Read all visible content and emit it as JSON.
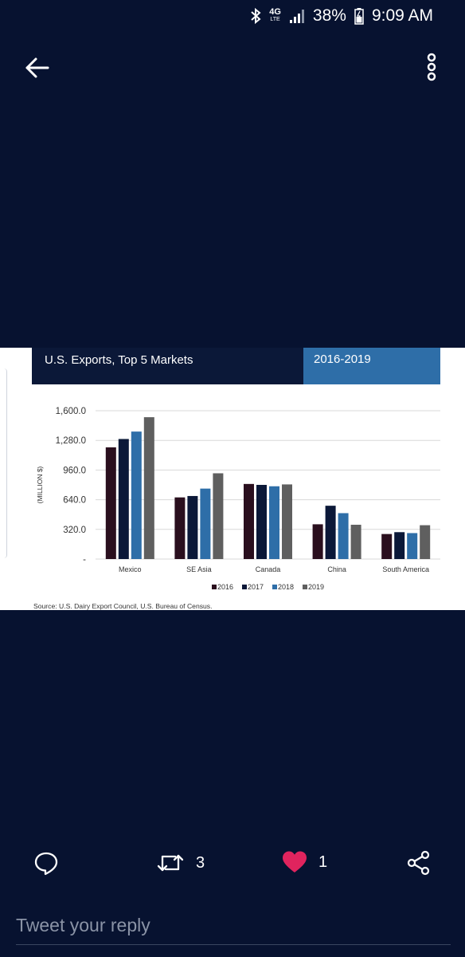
{
  "status_bar": {
    "network": "4G",
    "network_sub": "LTE",
    "battery": "38%",
    "time": "9:09 AM"
  },
  "icons": {
    "back": "arrow-left-icon",
    "more": "more-vertical-icon",
    "reply": "comment-icon",
    "retweet": "retweet-icon",
    "like": "heart-icon",
    "share": "share-icon"
  },
  "colors": {
    "background": "#071230",
    "like_active": "#e0245e",
    "chart_2016": "#2a0f1e",
    "chart_2017": "#0b1838",
    "chart_2018": "#2e6ea8",
    "chart_2019": "#5f5f5f"
  },
  "chart": {
    "header_title": "U.S. Exports, Top 5 Markets",
    "header_years": "2016-2019",
    "source": "Source: U.S. Dairy Export Council, U.S. Bureau of Census."
  },
  "chart_data": {
    "type": "bar",
    "title": "U.S. Exports, Top 5 Markets",
    "subtitle": "2016-2019",
    "xlabel": "",
    "ylabel": "(MILLION $)",
    "categories": [
      "Mexico",
      "SE Asia",
      "Canada",
      "China",
      "South America"
    ],
    "ytick_labels": [
      "-",
      "320.0",
      "640.0",
      "960.0",
      "1,280.0",
      "1,600.0"
    ],
    "ytick_values": [
      0,
      320,
      640,
      960,
      1280,
      1600
    ],
    "ylim": [
      0,
      1600
    ],
    "grid": true,
    "legend_position": "bottom",
    "series": [
      {
        "name": "2016",
        "values": [
          1205,
          665,
          810,
          375,
          270
        ]
      },
      {
        "name": "2017",
        "values": [
          1295,
          680,
          800,
          575,
          290
        ]
      },
      {
        "name": "2018",
        "values": [
          1375,
          760,
          785,
          495,
          280
        ]
      },
      {
        "name": "2019",
        "values": [
          1530,
          925,
          805,
          370,
          365
        ]
      }
    ]
  },
  "actions": {
    "retweet_count": "3",
    "like_count": "1"
  },
  "reply": {
    "placeholder": "Tweet your reply"
  }
}
